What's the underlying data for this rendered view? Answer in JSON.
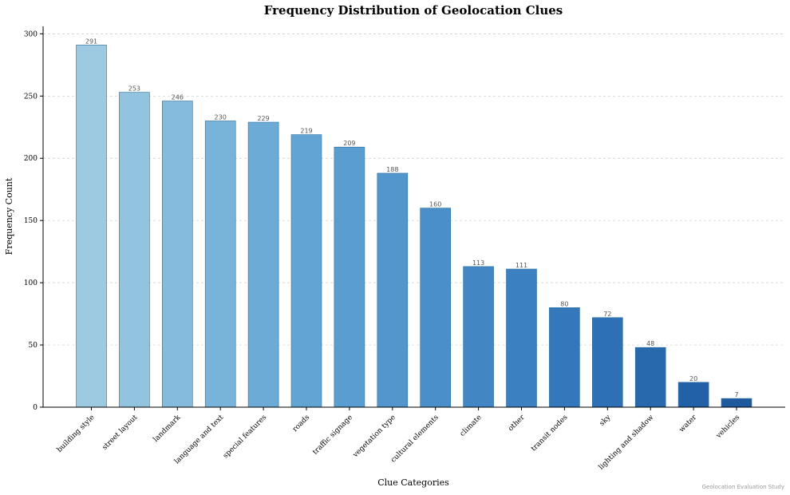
{
  "chart_data": {
    "type": "bar",
    "title": "Frequency Distribution of Geolocation Clues",
    "xlabel": "Clue Categories",
    "ylabel": "Frequency Count",
    "ylim": [
      0,
      306
    ],
    "yticks": [
      0,
      50,
      100,
      150,
      200,
      250,
      300
    ],
    "grid": "horizontal dashed",
    "categories": [
      "building style",
      "street layout",
      "landmark",
      "language and text",
      "special features",
      "roads",
      "traffic signage",
      "vegetation type",
      "cultural elements",
      "climate",
      "other",
      "transit nodes",
      "sky",
      "lighting and shadow",
      "water",
      "vehicles"
    ],
    "values": [
      291,
      253,
      246,
      230,
      229,
      219,
      209,
      188,
      160,
      113,
      111,
      80,
      72,
      48,
      20,
      7
    ],
    "colors": [
      "#9ecae1",
      "#92c3df",
      "#85bbdc",
      "#78b3d9",
      "#6cabd6",
      "#62a4d3",
      "#5a9dd0",
      "#5296cd",
      "#4a8fc9",
      "#4287c4",
      "#3b80c0",
      "#3478bb",
      "#2e70b5",
      "#2868ad",
      "#2361a6",
      "#1f5a9e"
    ],
    "edge_color": "#2f6f9f",
    "footnote": "Geolocation Evaluation Study"
  }
}
